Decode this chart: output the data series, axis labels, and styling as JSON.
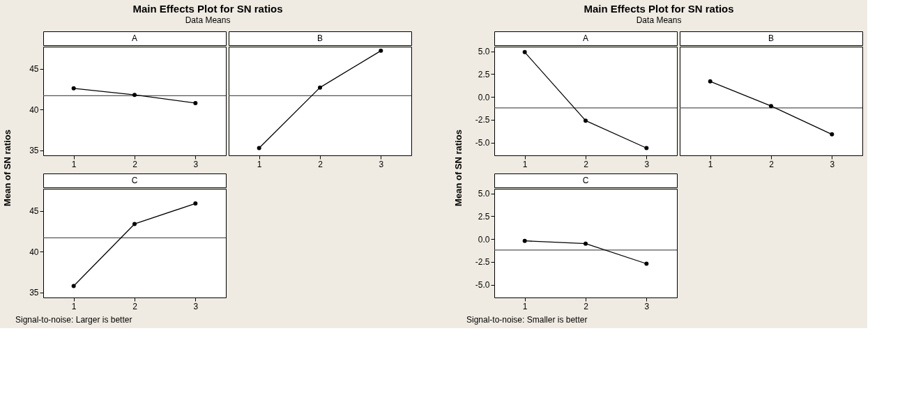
{
  "chart_data": [
    {
      "type": "line",
      "title": "A",
      "ylabel": "Mean of SN ratios",
      "annotations": [
        "Main Effects Plot for SN ratios",
        "Data Means"
      ],
      "categories": [
        "1",
        "2",
        "3"
      ],
      "series": [
        {
          "color": "#000000",
          "values": [
            42.6,
            41.8,
            40.8
          ]
        }
      ],
      "ylim": [
        34.4,
        47.7
      ],
      "yticks": [
        35,
        40,
        45
      ],
      "ref_lines": [
        {
          "axis": "y",
          "value": 41.7
        }
      ],
      "grid": false,
      "marker": "circle",
      "line_style": "solid"
    },
    {
      "type": "line",
      "title": "B",
      "categories": [
        "1",
        "2",
        "3"
      ],
      "series": [
        {
          "color": "#000000",
          "values": [
            35.3,
            42.7,
            47.2
          ]
        }
      ],
      "ylim": [
        34.4,
        47.7
      ],
      "yticks": [
        35,
        40,
        45
      ],
      "ref_lines": [
        {
          "axis": "y",
          "value": 41.7
        }
      ],
      "grid": false,
      "marker": "circle",
      "line_style": "solid",
      "tick_labels": "x"
    },
    {
      "type": "line",
      "title": "C",
      "annotations": [
        "Signal-to-noise: Larger is better"
      ],
      "categories": [
        "1",
        "2",
        "3"
      ],
      "series": [
        {
          "color": "#000000",
          "values": [
            35.8,
            43.4,
            45.9
          ]
        }
      ],
      "ylim": [
        34.4,
        47.7
      ],
      "yticks": [
        35,
        40,
        45
      ],
      "ref_lines": [
        {
          "axis": "y",
          "value": 41.7
        }
      ],
      "grid": false,
      "marker": "circle",
      "line_style": "solid"
    },
    {
      "type": "line",
      "title": "A",
      "ylabel": "Mean of SN ratios",
      "annotations": [
        "Main Effects Plot for SN ratios",
        "Data Means"
      ],
      "categories": [
        "1",
        "2",
        "3"
      ],
      "series": [
        {
          "color": "#000000",
          "values": [
            4.9,
            -2.6,
            -5.6
          ]
        }
      ],
      "ylim": [
        -6.4,
        5.5
      ],
      "yticks": [
        {
          "value": -5,
          "label": "-5.0"
        },
        -2.5,
        {
          "value": 0,
          "label": "0.0"
        },
        2.5,
        {
          "value": 5,
          "label": "5.0"
        }
      ],
      "ref_lines": [
        {
          "axis": "y",
          "value": -1.2
        }
      ],
      "grid": false,
      "marker": "circle",
      "line_style": "solid"
    },
    {
      "type": "line",
      "title": "B",
      "categories": [
        "1",
        "2",
        "3"
      ],
      "series": [
        {
          "color": "#000000",
          "values": [
            1.7,
            -1.0,
            -4.1
          ]
        }
      ],
      "ylim": [
        -6.4,
        5.5
      ],
      "yticks": [
        -5,
        -2.5,
        0,
        2.5,
        5
      ],
      "ref_lines": [
        {
          "axis": "y",
          "value": -1.2
        }
      ],
      "grid": false,
      "marker": "circle",
      "line_style": "solid",
      "tick_labels": "x"
    },
    {
      "type": "line",
      "title": "C",
      "annotations": [
        "Signal-to-noise: Smaller is better"
      ],
      "categories": [
        "1",
        "2",
        "3"
      ],
      "series": [
        {
          "color": "#000000",
          "values": [
            -0.2,
            -0.5,
            -2.7
          ]
        }
      ],
      "ylim": [
        -6.4,
        5.5
      ],
      "yticks": [
        {
          "value": -5,
          "label": "-5.0"
        },
        -2.5,
        {
          "value": 0,
          "label": "0.0"
        },
        2.5,
        {
          "value": 5,
          "label": "5.0"
        }
      ],
      "ref_lines": [
        {
          "axis": "y",
          "value": -1.2
        }
      ],
      "grid": false,
      "marker": "circle",
      "line_style": "solid"
    }
  ]
}
